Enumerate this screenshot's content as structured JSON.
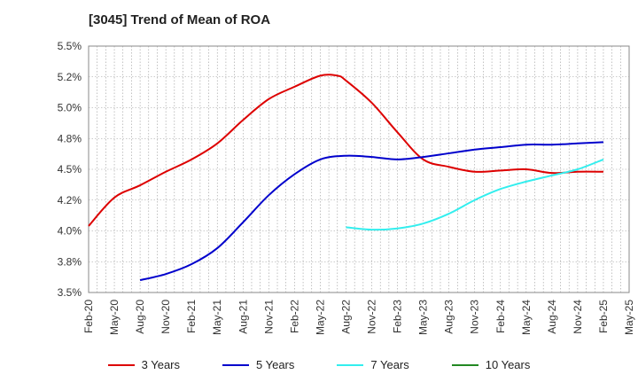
{
  "title": "[3045]  Trend of Mean of ROA",
  "chart_data": {
    "type": "line",
    "title": "[3045]  Trend of Mean of ROA",
    "xlabel": "",
    "ylabel": "",
    "ylim": [
      3.5,
      5.5
    ],
    "y_ticks": [
      "3.5%",
      "3.8%",
      "4.0%",
      "4.2%",
      "4.5%",
      "4.8%",
      "5.0%",
      "5.2%",
      "5.5%"
    ],
    "x_ticks": [
      "Feb-20",
      "May-20",
      "Aug-20",
      "Nov-20",
      "Feb-21",
      "May-21",
      "Aug-21",
      "Nov-21",
      "Feb-22",
      "May-22",
      "Aug-22",
      "Nov-22",
      "Feb-23",
      "May-23",
      "Aug-23",
      "Nov-23",
      "Feb-24",
      "May-24",
      "Aug-24",
      "Nov-24",
      "Feb-25",
      "May-25"
    ],
    "grid": true,
    "legend_position": "bottom",
    "series": [
      {
        "name": "3 Years",
        "color": "#dd0000",
        "x": [
          "Feb-20",
          "May-20",
          "Aug-20",
          "Nov-20",
          "Feb-21",
          "May-21",
          "Aug-21",
          "Nov-21",
          "Feb-22",
          "May-22",
          "Jul-22",
          "Aug-22",
          "Nov-22",
          "Feb-23",
          "May-23",
          "Aug-23",
          "Nov-23",
          "Feb-24",
          "May-24",
          "Aug-24",
          "Nov-24",
          "Feb-25"
        ],
        "values": [
          4.04,
          4.27,
          4.37,
          4.48,
          4.58,
          4.71,
          4.9,
          5.07,
          5.17,
          5.26,
          5.26,
          5.22,
          5.04,
          4.8,
          4.58,
          4.52,
          4.48,
          4.49,
          4.5,
          4.47,
          4.48,
          4.48
        ]
      },
      {
        "name": "5 Years",
        "color": "#0000cc",
        "x": [
          "Aug-20",
          "Nov-20",
          "Feb-21",
          "May-21",
          "Aug-21",
          "Nov-21",
          "Feb-22",
          "May-22",
          "Aug-22",
          "Nov-22",
          "Feb-23",
          "May-23",
          "Aug-23",
          "Nov-23",
          "Feb-24",
          "May-24",
          "Aug-24",
          "Nov-24",
          "Feb-25"
        ],
        "values": [
          3.6,
          3.65,
          3.73,
          3.86,
          4.07,
          4.29,
          4.46,
          4.58,
          4.61,
          4.6,
          4.58,
          4.6,
          4.63,
          4.66,
          4.68,
          4.7,
          4.7,
          4.71,
          4.72
        ]
      },
      {
        "name": "7 Years",
        "color": "#33eeee",
        "x": [
          "Aug-22",
          "Nov-22",
          "Feb-23",
          "May-23",
          "Aug-23",
          "Nov-23",
          "Feb-24",
          "May-24",
          "Aug-24",
          "Nov-24",
          "Feb-25"
        ],
        "values": [
          4.03,
          4.01,
          4.02,
          4.06,
          4.14,
          4.25,
          4.34,
          4.4,
          4.45,
          4.5,
          4.58
        ]
      },
      {
        "name": "10 Years",
        "color": "#228822",
        "x": [],
        "values": []
      }
    ]
  }
}
